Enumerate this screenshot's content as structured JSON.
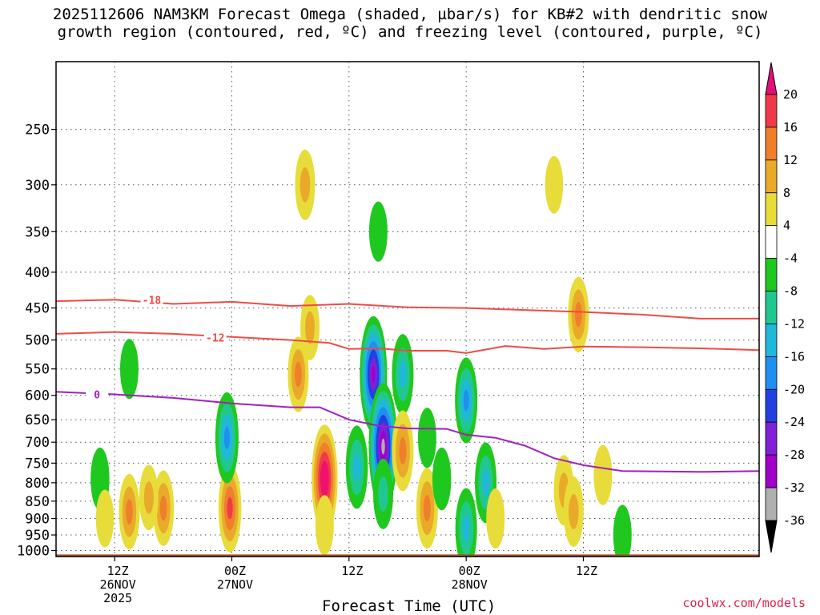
{
  "title_line1": "2025112606 NAM3KM Forecast Omega (shaded, µbar/s) for KB#2 with dendritic snow",
  "title_line2": "growth region (contoured, red, ºC) and freezing level (contoured, purple, ºC)",
  "credit": "coolwx.com/models",
  "chart_data": {
    "type": "heatmap",
    "xlabel": "Forecast Time (UTC)",
    "ylabel": "",
    "y_axis": {
      "unit": "hPa",
      "ticks": [
        250,
        300,
        350,
        400,
        450,
        500,
        550,
        600,
        650,
        700,
        750,
        800,
        850,
        900,
        950,
        1000
      ],
      "range": [
        200,
        1020
      ]
    },
    "x_axis": {
      "unit": "hours since 2025112606",
      "range": [
        0,
        72
      ],
      "ticks": [
        {
          "hour": 6,
          "lines": [
            "12Z",
            "26NOV",
            "2025"
          ]
        },
        {
          "hour": 18,
          "lines": [
            "00Z",
            "27NOV"
          ]
        },
        {
          "hour": 30,
          "lines": [
            "12Z"
          ]
        },
        {
          "hour": 42,
          "lines": [
            "00Z",
            "28NOV"
          ]
        },
        {
          "hour": 54,
          "lines": [
            "12Z"
          ]
        }
      ]
    },
    "colorbar": {
      "labels": [
        "20",
        "16",
        "12",
        "8",
        "4",
        "-4",
        "-8",
        "-12",
        "-16",
        "-20",
        "-24",
        "-28",
        "-32",
        "-36"
      ],
      "bins": [
        {
          "lo": 16,
          "hi": 20,
          "color": "#f03a4a"
        },
        {
          "lo": 12,
          "hi": 16,
          "color": "#ef7f2a"
        },
        {
          "lo": 8,
          "hi": 12,
          "color": "#e9aa2a"
        },
        {
          "lo": 4,
          "hi": 8,
          "color": "#e8dc3a"
        },
        {
          "lo": -4,
          "hi": 4,
          "color": "#ffffff"
        },
        {
          "lo": -8,
          "hi": -4,
          "color": "#1fc81f"
        },
        {
          "lo": -12,
          "hi": -8,
          "color": "#20c890"
        },
        {
          "lo": -16,
          "hi": -12,
          "color": "#20b8d8"
        },
        {
          "lo": -20,
          "hi": -16,
          "color": "#2090f0"
        },
        {
          "lo": -24,
          "hi": -20,
          "color": "#2040e0"
        },
        {
          "lo": -28,
          "hi": -24,
          "color": "#8020d8"
        },
        {
          "lo": -32,
          "hi": -28,
          "color": "#a000c8"
        },
        {
          "lo": -36,
          "hi": -32,
          "color": "#b0b0b0"
        }
      ],
      "top_arrow_color": "#e0107a",
      "bottom_arrow_color": "#000000"
    },
    "omega_cells": [
      {
        "h": 4.5,
        "p": 790,
        "v": -7
      },
      {
        "h": 7.5,
        "p": 550,
        "v": -6
      },
      {
        "h": 7.5,
        "p": 880,
        "v": 12
      },
      {
        "h": 5.0,
        "p": 900,
        "v": 5
      },
      {
        "h": 11.0,
        "p": 870,
        "v": 12
      },
      {
        "h": 9.5,
        "p": 840,
        "v": 8
      },
      {
        "h": 17.8,
        "p": 870,
        "v": 17
      },
      {
        "h": 17.5,
        "p": 690,
        "v": -18
      },
      {
        "h": 24.8,
        "p": 560,
        "v": 12
      },
      {
        "h": 25.5,
        "p": 300,
        "v": 10
      },
      {
        "h": 26.0,
        "p": 480,
        "v": 8
      },
      {
        "h": 27.5,
        "p": 790,
        "v": 25
      },
      {
        "h": 27.5,
        "p": 920,
        "v": 6
      },
      {
        "h": 30.8,
        "p": 760,
        "v": -15
      },
      {
        "h": 32.5,
        "p": 560,
        "v": -28
      },
      {
        "h": 33.5,
        "p": 710,
        "v": -32
      },
      {
        "h": 33.5,
        "p": 830,
        "v": -10
      },
      {
        "h": 35.5,
        "p": 560,
        "v": -14
      },
      {
        "h": 35.5,
        "p": 720,
        "v": 14
      },
      {
        "h": 33.0,
        "p": 350,
        "v": -6
      },
      {
        "h": 38.0,
        "p": 870,
        "v": 14
      },
      {
        "h": 38.0,
        "p": 690,
        "v": -6
      },
      {
        "h": 39.5,
        "p": 790,
        "v": -7
      },
      {
        "h": 42.0,
        "p": 610,
        "v": -16
      },
      {
        "h": 42.0,
        "p": 930,
        "v": -14
      },
      {
        "h": 44.0,
        "p": 800,
        "v": -14
      },
      {
        "h": 45.0,
        "p": 900,
        "v": 6
      },
      {
        "h": 52.0,
        "p": 820,
        "v": 10
      },
      {
        "h": 53.0,
        "p": 880,
        "v": 10
      },
      {
        "h": 53.5,
        "p": 460,
        "v": 12
      },
      {
        "h": 51.0,
        "p": 300,
        "v": 5
      },
      {
        "h": 56.0,
        "p": 780,
        "v": 6
      },
      {
        "h": 58.0,
        "p": 950,
        "v": -6
      }
    ],
    "dgz_contours": [
      {
        "label": "-18",
        "color": "#f04a46",
        "points": [
          [
            0,
            440
          ],
          [
            6,
            438
          ],
          [
            12,
            444
          ],
          [
            18,
            441
          ],
          [
            24,
            447
          ],
          [
            30,
            444
          ],
          [
            36,
            449
          ],
          [
            42,
            450
          ],
          [
            48,
            453
          ],
          [
            54,
            456
          ],
          [
            60,
            460
          ],
          [
            66,
            466
          ],
          [
            72,
            466
          ]
        ],
        "label_at": [
          9.8,
          438
        ]
      },
      {
        "label": "-12",
        "color": "#f04a46",
        "points": [
          [
            0,
            490
          ],
          [
            6,
            487
          ],
          [
            12,
            490
          ],
          [
            18,
            495
          ],
          [
            24,
            500
          ],
          [
            28,
            505
          ],
          [
            30,
            515
          ],
          [
            33,
            514
          ],
          [
            36,
            518
          ],
          [
            40,
            518
          ],
          [
            42,
            522
          ],
          [
            46,
            510
          ],
          [
            50,
            515
          ],
          [
            54,
            511
          ],
          [
            60,
            512
          ],
          [
            66,
            514
          ],
          [
            72,
            517
          ]
        ],
        "label_at": [
          16.3,
          496
        ]
      }
    ],
    "freezing_level": {
      "label": "0",
      "color": "#a020c0",
      "points": [
        [
          0,
          593
        ],
        [
          6,
          598
        ],
        [
          12,
          605
        ],
        [
          18,
          616
        ],
        [
          24,
          624
        ],
        [
          27,
          624
        ],
        [
          30,
          650
        ],
        [
          33,
          663
        ],
        [
          36,
          669
        ],
        [
          40,
          670
        ],
        [
          42,
          683
        ],
        [
          45,
          690
        ],
        [
          48,
          708
        ],
        [
          51,
          738
        ],
        [
          54,
          755
        ],
        [
          58,
          770
        ],
        [
          66,
          772
        ],
        [
          72,
          770
        ]
      ],
      "label_at": [
        4.2,
        598
      ]
    },
    "terrain_color": "#a65229"
  }
}
